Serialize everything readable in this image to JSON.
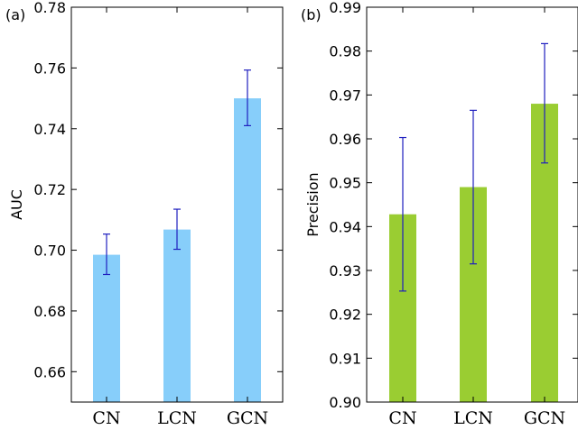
{
  "chart_data": [
    {
      "panel_label": "(a)",
      "type": "bar",
      "categories": [
        "CN",
        "LCN",
        "GCN"
      ],
      "values": [
        0.6985,
        0.7068,
        0.75
      ],
      "errors_upper": [
        0.7053,
        0.7135,
        0.7593
      ],
      "errors_lower": [
        0.692,
        0.7003,
        0.741
      ],
      "ylabel": "AUC",
      "ylim": [
        0.65,
        0.78
      ],
      "yticks": [
        0.66,
        0.68,
        0.7,
        0.72,
        0.74,
        0.76,
        0.78
      ],
      "ytick_labels": [
        "0.66",
        "0.68",
        "0.70",
        "0.72",
        "0.74",
        "0.76",
        "0.78"
      ],
      "bar_color": "#87cefa",
      "error_color": "#1f1fbf",
      "grid": false
    },
    {
      "panel_label": "(b)",
      "type": "bar",
      "categories": [
        "CN",
        "LCN",
        "GCN"
      ],
      "values": [
        0.9428,
        0.949,
        0.968
      ],
      "errors_upper": [
        0.9603,
        0.9665,
        0.9817
      ],
      "errors_lower": [
        0.9253,
        0.9315,
        0.9545
      ],
      "ylabel": "Precision",
      "ylim": [
        0.9,
        0.99
      ],
      "yticks": [
        0.9,
        0.91,
        0.92,
        0.93,
        0.94,
        0.95,
        0.96,
        0.97,
        0.98,
        0.99
      ],
      "ytick_labels": [
        "0.90",
        "0.91",
        "0.92",
        "0.93",
        "0.94",
        "0.95",
        "0.96",
        "0.97",
        "0.98",
        "0.99"
      ],
      "bar_color": "#9acd32",
      "error_color": "#1f1fbf",
      "grid": false
    }
  ]
}
